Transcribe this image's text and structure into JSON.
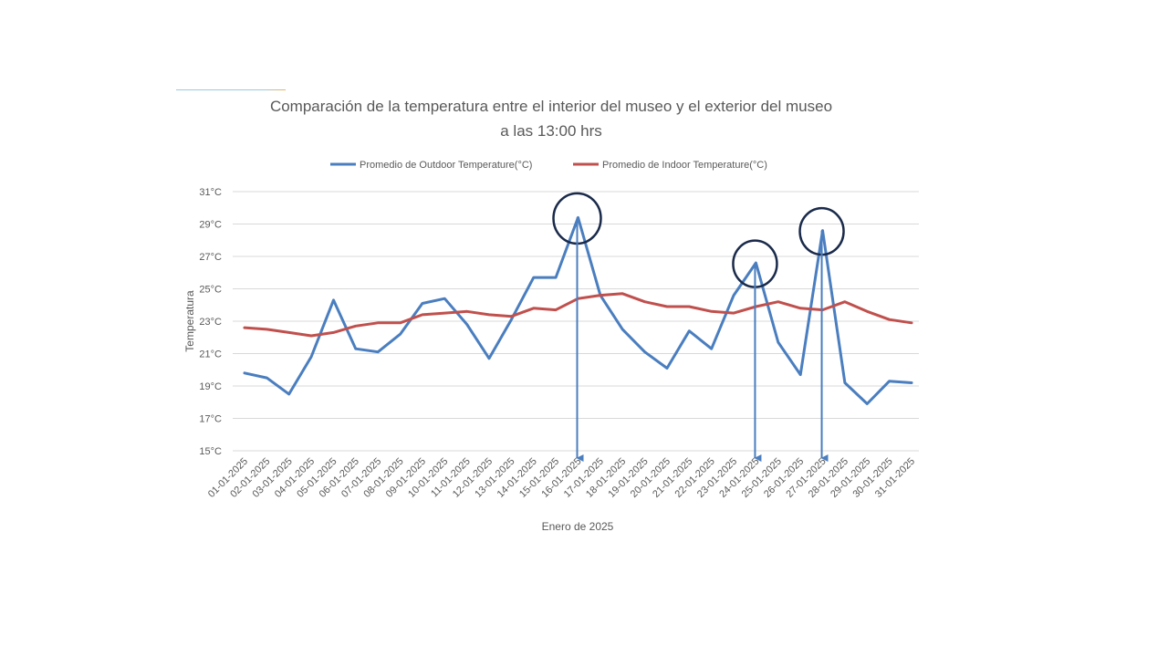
{
  "chart_data": {
    "type": "line",
    "title_line1": "Comparación de la temperatura entre el interior del museo y el exterior del museo",
    "title_line2": "a las 13:00 hrs",
    "xlabel": "Enero de 2025",
    "ylabel": "Temperatura",
    "ylim": [
      15,
      31
    ],
    "yticks": [
      "15°C",
      "17°C",
      "19°C",
      "21°C",
      "23°C",
      "25°C",
      "27°C",
      "29°C",
      "31°C"
    ],
    "grid": true,
    "legend_position": "top",
    "categories": [
      "01-01-2025",
      "02-01-2025",
      "03-01-2025",
      "04-01-2025",
      "05-01-2025",
      "06-01-2025",
      "07-01-2025",
      "08-01-2025",
      "09-01-2025",
      "10-01-2025",
      "11-01-2025",
      "12-01-2025",
      "13-01-2025",
      "14-01-2025",
      "15-01-2025",
      "16-01-2025",
      "17-01-2025",
      "18-01-2025",
      "19-01-2025",
      "20-01-2025",
      "21-01-2025",
      "22-01-2025",
      "23-01-2025",
      "24-01-2025",
      "25-01-2025",
      "26-01-2025",
      "27-01-2025",
      "28-01-2025",
      "29-01-2025",
      "30-01-2025",
      "31-01-2025"
    ],
    "series": [
      {
        "name": "Promedio de Outdoor Temperature(°C)",
        "color": "#4a7ebf",
        "values": [
          19.8,
          19.5,
          18.5,
          20.8,
          24.3,
          21.3,
          21.1,
          22.2,
          24.1,
          24.4,
          22.8,
          20.7,
          23.1,
          25.7,
          25.7,
          29.4,
          24.6,
          22.5,
          21.1,
          20.1,
          22.4,
          21.3,
          24.6,
          26.6,
          21.7,
          19.7,
          28.6,
          19.2,
          17.9,
          19.3,
          19.2
        ]
      },
      {
        "name": "Promedio de Indoor Temperature(°C)",
        "color": "#c0504d",
        "values": [
          22.6,
          22.5,
          22.3,
          22.1,
          22.3,
          22.7,
          22.9,
          22.9,
          23.4,
          23.5,
          23.6,
          23.4,
          23.3,
          23.8,
          23.7,
          24.4,
          24.6,
          24.7,
          24.2,
          23.9,
          23.9,
          23.6,
          23.5,
          23.9,
          24.2,
          23.8,
          23.7,
          24.2,
          23.6,
          23.1,
          22.9
        ]
      }
    ],
    "annotations": [
      {
        "type": "circle-and-arrow",
        "category": "16-01-2025",
        "value": 29.4
      },
      {
        "type": "circle-and-arrow",
        "category": "24-01-2025",
        "value": 26.6
      },
      {
        "type": "circle-and-arrow",
        "category": "27-01-2025",
        "value": 28.6
      }
    ],
    "annotation_circle_color": "#1a2a4a",
    "annotation_arrow_color": "#4a7ebf",
    "grid_color": "#d9d9d9",
    "text_color": "#595959"
  }
}
